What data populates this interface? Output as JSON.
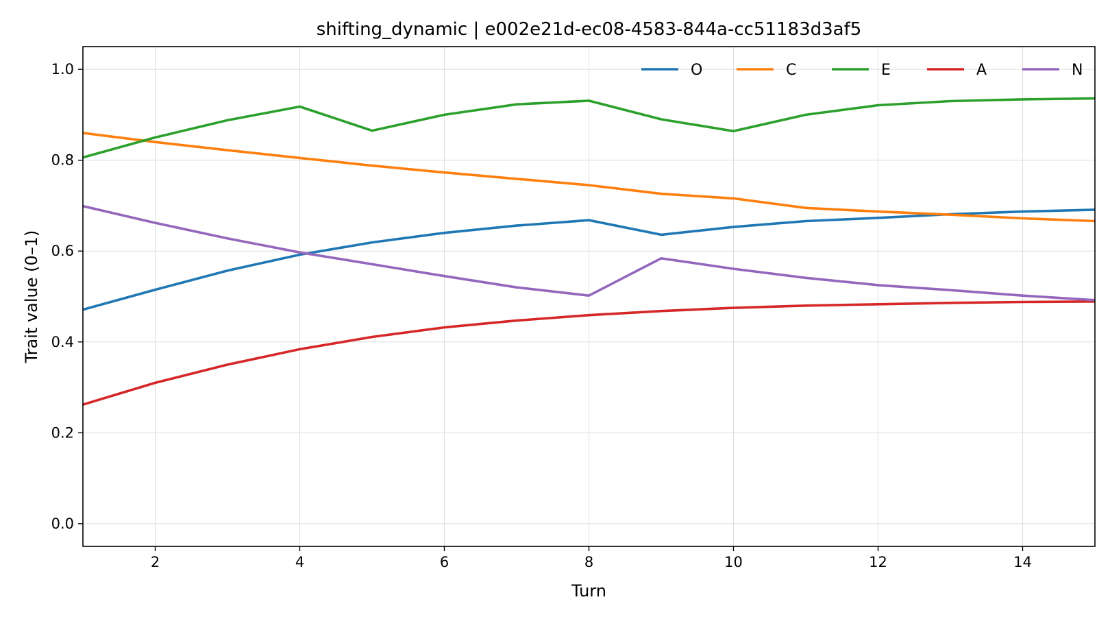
{
  "chart_data": {
    "type": "line",
    "title": "shifting_dynamic | e002e21d-ec08-4583-844a-cc51183d3af5",
    "xlabel": "Turn",
    "ylabel": "Trait value (0–1)",
    "xlim": [
      1,
      15
    ],
    "ylim": [
      -0.05,
      1.05
    ],
    "x_ticks": [
      2,
      4,
      6,
      8,
      10,
      12,
      14
    ],
    "y_ticks": [
      0.0,
      0.2,
      0.4,
      0.6,
      0.8,
      1.0
    ],
    "x_tick_labels": [
      "2",
      "4",
      "6",
      "8",
      "10",
      "12",
      "14"
    ],
    "y_tick_labels": [
      "0.0",
      "0.2",
      "0.4",
      "0.6",
      "0.8",
      "1.0"
    ],
    "grid": true,
    "legend_position": "top-right",
    "x": [
      1,
      2,
      3,
      4,
      5,
      6,
      7,
      8,
      9,
      10,
      11,
      12,
      13,
      14,
      15
    ],
    "series": [
      {
        "name": "O",
        "color": "#1f77b4",
        "values": [
          0.471,
          0.515,
          0.557,
          0.592,
          0.619,
          0.64,
          0.656,
          0.668,
          0.636,
          0.653,
          0.666,
          0.673,
          0.681,
          0.687,
          0.691
        ]
      },
      {
        "name": "C",
        "color": "#ff7f0e",
        "values": [
          0.86,
          0.84,
          0.822,
          0.805,
          0.788,
          0.773,
          0.759,
          0.745,
          0.726,
          0.716,
          0.695,
          0.687,
          0.68,
          0.672,
          0.666
        ]
      },
      {
        "name": "E",
        "color": "#2ca02c",
        "values": [
          0.806,
          0.85,
          0.888,
          0.918,
          0.865,
          0.9,
          0.923,
          0.931,
          0.89,
          0.864,
          0.9,
          0.921,
          0.93,
          0.934,
          0.936
        ]
      },
      {
        "name": "A",
        "color": "#d62728",
        "values": [
          0.262,
          0.31,
          0.35,
          0.384,
          0.411,
          0.432,
          0.447,
          0.459,
          0.468,
          0.475,
          0.48,
          0.483,
          0.486,
          0.488,
          0.489
        ]
      },
      {
        "name": "N",
        "color": "#9467bd",
        "values": [
          0.699,
          0.662,
          0.628,
          0.597,
          0.571,
          0.545,
          0.52,
          0.502,
          0.584,
          0.561,
          0.541,
          0.525,
          0.514,
          0.502,
          0.492
        ]
      }
    ]
  }
}
